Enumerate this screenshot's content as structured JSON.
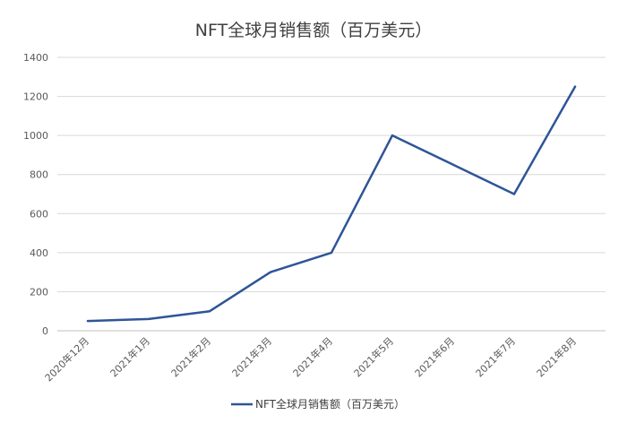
{
  "chart_data": {
    "type": "line",
    "title": "NFT全球月销售额（百万美元）",
    "xlabel": "",
    "ylabel": "",
    "categories": [
      "2020年12月",
      "2021年1月",
      "2021年2月",
      "2021年3月",
      "2021年4月",
      "2021年5月",
      "2021年6月",
      "2021年7月",
      "2021年8月"
    ],
    "series": [
      {
        "name": "NFT全球月销售额（百万美元）",
        "values": [
          50,
          60,
          100,
          300,
          400,
          1000,
          850,
          700,
          1250
        ]
      }
    ],
    "ylim": [
      0,
      1400
    ],
    "yticks": [
      0,
      200,
      400,
      600,
      800,
      1000,
      1200,
      1400
    ],
    "grid": true,
    "legend": "bottom",
    "colors": {
      "line": "#2e5597"
    }
  }
}
